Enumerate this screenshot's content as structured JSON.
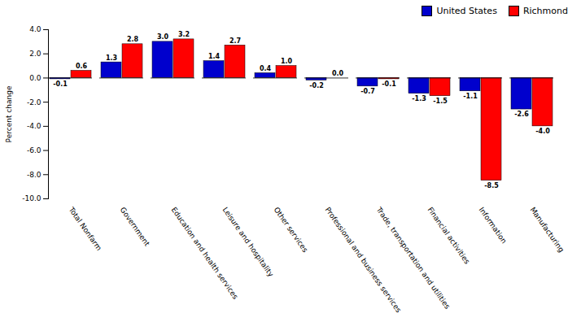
{
  "chart_data": {
    "type": "bar",
    "categories": [
      "Total Nonfarm",
      "Government",
      "Education and health services",
      "Leisure and hospitality",
      "Other services",
      "Professional and business services",
      "Trade, transportation and utilities",
      "Financial activities",
      "Information",
      "Manufacturing"
    ],
    "series": [
      {
        "name": "United States",
        "color": "#0000CD",
        "values": [
          -0.1,
          1.3,
          3.0,
          1.4,
          0.4,
          -0.2,
          -0.7,
          -1.3,
          -1.1,
          -2.6
        ],
        "value_labels": [
          "-0.1",
          "1.3",
          "3.0",
          "1.4",
          "0.4",
          "-0.2",
          "-0.7",
          "-1.3",
          "-1.1",
          "-2.6"
        ]
      },
      {
        "name": "Richmond",
        "color": "#FF0000",
        "values": [
          0.6,
          2.8,
          3.2,
          2.7,
          1.0,
          0.0,
          -0.1,
          -1.5,
          -8.5,
          -4.0
        ],
        "value_labels": [
          "0.6",
          "2.8",
          "3.2",
          "2.7",
          "1.0",
          "0.0",
          "-0.1",
          "-1.5",
          "-8.5",
          "-4.0"
        ]
      }
    ],
    "ylabel": "Percent change",
    "ylim": [
      -10.0,
      4.0
    ],
    "yticks": [
      {
        "value": -10.0,
        "label": "-10.0"
      },
      {
        "value": -8.0,
        "label": "-8.0"
      },
      {
        "value": -6.0,
        "label": "-6.0"
      },
      {
        "value": -4.0,
        "label": "-4.0"
      },
      {
        "value": -2.0,
        "label": "-2.0"
      },
      {
        "value": 0.0,
        "label": "0.0"
      },
      {
        "value": 2.0,
        "label": "2.0"
      },
      {
        "value": 4.0,
        "label": "4.0"
      }
    ],
    "grid": false,
    "legend": "upper right",
    "data_labels": true
  }
}
